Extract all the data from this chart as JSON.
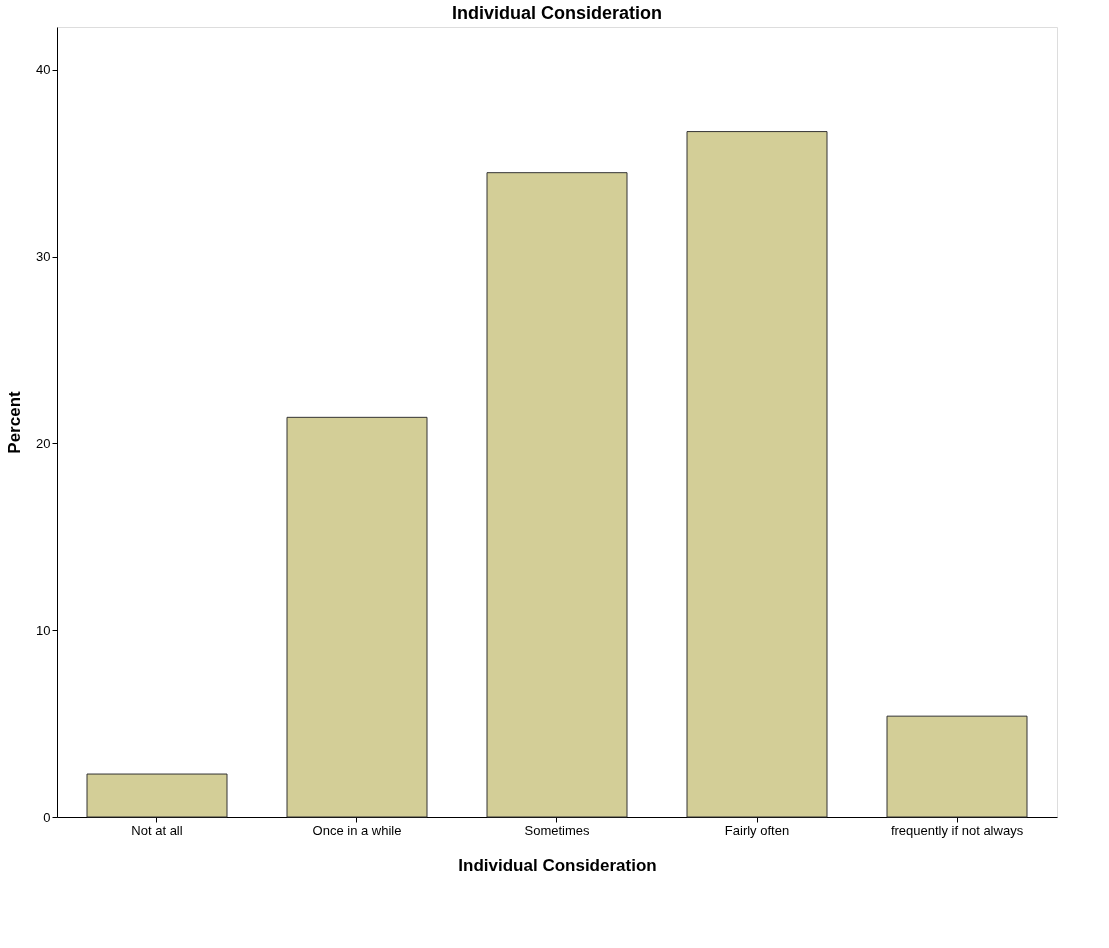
{
  "chart_data": {
    "type": "bar",
    "title": "Individual Consideration",
    "xlabel": "Individual Consideration",
    "ylabel": "Percent",
    "categories": [
      "Not at all",
      "Once in a while",
      "Sometimes",
      "Fairly often",
      "frequently if not always"
    ],
    "values": [
      2.3,
      21.4,
      34.5,
      36.7,
      5.4
    ],
    "color": "#d3ce97",
    "ylim": [
      0,
      42.3
    ],
    "yticks": [
      0,
      10,
      20,
      30,
      40
    ],
    "grid": false
  }
}
